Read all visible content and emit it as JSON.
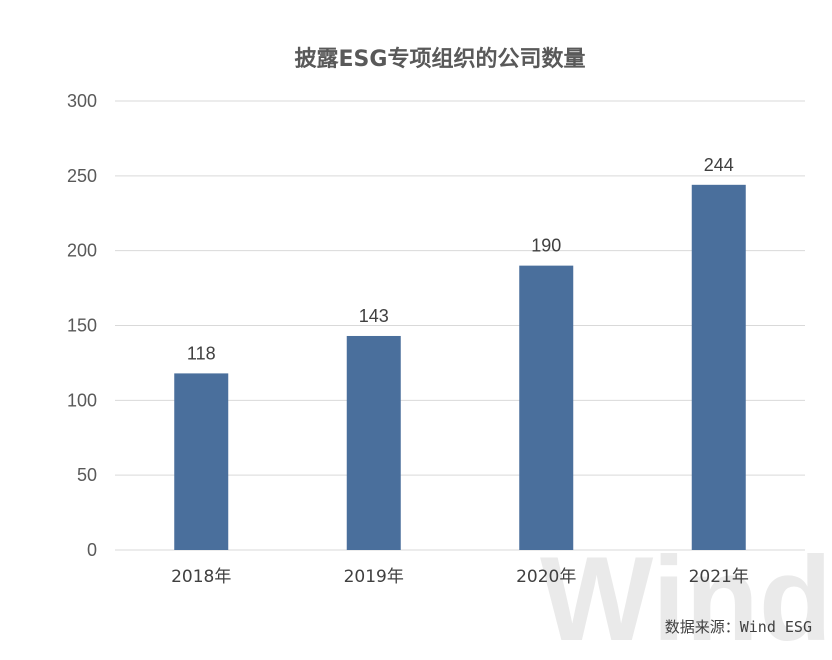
{
  "chart_data": {
    "type": "bar",
    "title": "披露ESG专项组织的公司数量",
    "xlabel": "",
    "ylabel": "",
    "categories": [
      "2018年",
      "2019年",
      "2020年",
      "2021年"
    ],
    "values": [
      118,
      143,
      190,
      244
    ],
    "data_labels": [
      "118",
      "143",
      "190",
      "244"
    ],
    "ylim": [
      0,
      300
    ],
    "y_ticks": [
      0,
      50,
      100,
      150,
      200,
      250,
      300
    ],
    "grid": true,
    "legend": "none",
    "bar_color": "#4a6f9c",
    "grid_color": "#d9d9d9"
  },
  "watermark": "Wind",
  "source_note": "数据来源：Wind ESG"
}
